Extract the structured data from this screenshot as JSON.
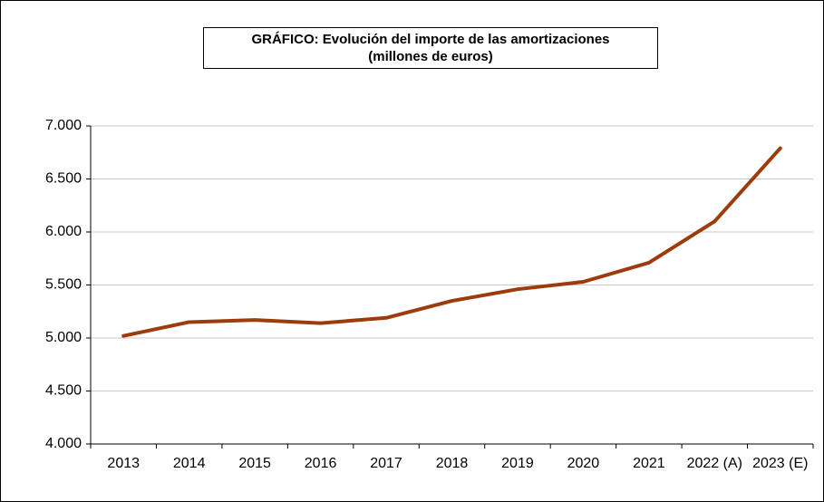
{
  "chart_data": {
    "type": "line",
    "title": "GRÁFICO: Evolución del importe de las amortizaciones",
    "subtitle": "(millones de euros)",
    "categories": [
      "2013",
      "2014",
      "2015",
      "2016",
      "2017",
      "2018",
      "2019",
      "2020",
      "2021",
      "2022 (A)",
      "2023 (E)"
    ],
    "values": [
      5020,
      5150,
      5170,
      5140,
      5190,
      5350,
      5460,
      5530,
      5710,
      6100,
      6790
    ],
    "color": "#9e3b0c",
    "ylim": [
      4000,
      7000
    ],
    "yticks": [
      {
        "value": 4000,
        "label": "4.000"
      },
      {
        "value": 4500,
        "label": "4.500"
      },
      {
        "value": 5000,
        "label": "5.000"
      },
      {
        "value": 5500,
        "label": "5.500"
      },
      {
        "value": 6000,
        "label": "6.000"
      },
      {
        "value": 6500,
        "label": "6.500"
      },
      {
        "value": 7000,
        "label": "7.000"
      }
    ],
    "grid": true
  }
}
